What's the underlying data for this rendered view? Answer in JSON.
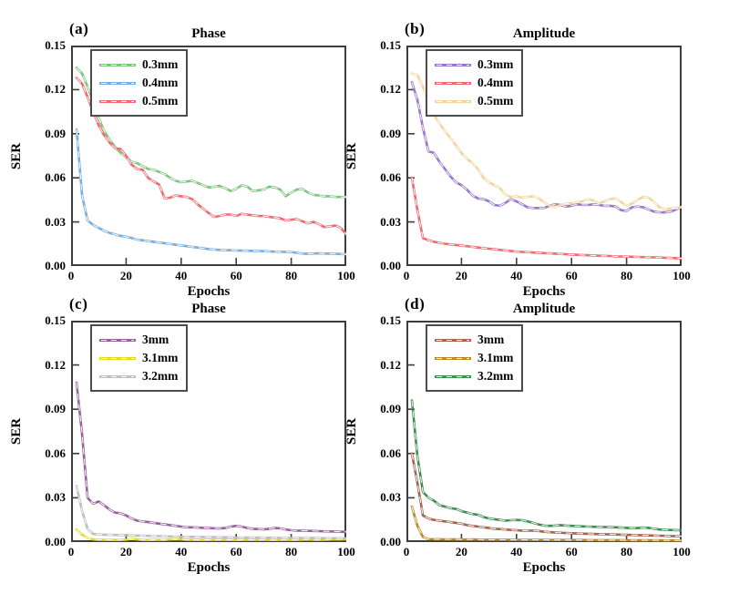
{
  "figure": {
    "background": "#ffffff",
    "axis_color": "#3d3d3d",
    "text_color": "#000000",
    "line_overlay_color": "#ffffff"
  },
  "chart_data": [
    {
      "type": "line",
      "tag": "(a)",
      "title": "Phase",
      "xlabel": "Epochs",
      "ylabel": "SER",
      "xlim": [
        0,
        100
      ],
      "ylim": [
        0,
        0.15
      ],
      "xticks": [
        0,
        20,
        40,
        60,
        80,
        100
      ],
      "ytick_labels": [
        "0.00",
        "0.03",
        "0.06",
        "0.09",
        "0.12",
        "0.15"
      ],
      "legend_position": "top-left",
      "grid": false,
      "x": [
        2,
        4,
        6,
        8,
        10,
        12,
        14,
        16,
        18,
        20,
        22,
        24,
        26,
        28,
        30,
        32,
        34,
        36,
        38,
        40,
        42,
        44,
        46,
        48,
        50,
        52,
        54,
        56,
        58,
        60,
        62,
        64,
        66,
        68,
        70,
        72,
        74,
        76,
        78,
        80,
        82,
        84,
        86,
        88,
        90,
        92,
        94,
        96,
        98,
        100
      ],
      "series": [
        {
          "name": "0.3mm",
          "color": "#7fc47f",
          "values": [
            0.135,
            0.131,
            0.122,
            0.112,
            0.101,
            0.092,
            0.086,
            0.081,
            0.077,
            0.074,
            0.071,
            0.07,
            0.068,
            0.066,
            0.0655,
            0.064,
            0.0625,
            0.06,
            0.058,
            0.057,
            0.0575,
            0.058,
            0.0565,
            0.055,
            0.0535,
            0.054,
            0.0545,
            0.053,
            0.051,
            0.0525,
            0.055,
            0.054,
            0.051,
            0.0515,
            0.052,
            0.054,
            0.0535,
            0.052,
            0.0475,
            0.05,
            0.052,
            0.0525,
            0.05,
            0.0485,
            0.048,
            0.0475,
            0.0475,
            0.047,
            0.047,
            0.047
          ]
        },
        {
          "name": "0.4mm",
          "color": "#79aede",
          "values": [
            0.093,
            0.048,
            0.031,
            0.028,
            0.026,
            0.024,
            0.0225,
            0.0215,
            0.0205,
            0.02,
            0.019,
            0.018,
            0.0175,
            0.017,
            0.0165,
            0.016,
            0.0155,
            0.015,
            0.0145,
            0.014,
            0.0135,
            0.013,
            0.0125,
            0.012,
            0.0115,
            0.0112,
            0.011,
            0.0108,
            0.0107,
            0.0106,
            0.0105,
            0.0104,
            0.0103,
            0.0102,
            0.0101,
            0.01,
            0.0098,
            0.0097,
            0.0096,
            0.0095,
            0.009,
            0.0085,
            0.0083,
            0.0085,
            0.0086,
            0.0085,
            0.0084,
            0.0083,
            0.0082,
            0.008
          ]
        },
        {
          "name": "0.5mm",
          "color": "#ee6a6f",
          "values": [
            0.128,
            0.124,
            0.115,
            0.105,
            0.096,
            0.089,
            0.084,
            0.08,
            0.0795,
            0.075,
            0.069,
            0.066,
            0.0655,
            0.06,
            0.0575,
            0.0555,
            0.046,
            0.0465,
            0.048,
            0.0475,
            0.047,
            0.0455,
            0.042,
            0.039,
            0.036,
            0.0335,
            0.034,
            0.035,
            0.035,
            0.034,
            0.0355,
            0.035,
            0.0345,
            0.034,
            0.034,
            0.0335,
            0.033,
            0.0325,
            0.031,
            0.0315,
            0.032,
            0.0305,
            0.029,
            0.03,
            0.0285,
            0.0265,
            0.027,
            0.0275,
            0.026,
            0.0215
          ]
        }
      ]
    },
    {
      "type": "line",
      "tag": "(b)",
      "title": "Amplitude",
      "xlabel": "Epochs",
      "ylabel": "SER",
      "xlim": [
        0,
        100
      ],
      "ylim": [
        0,
        0.15
      ],
      "xticks": [
        0,
        20,
        40,
        60,
        80,
        100
      ],
      "ytick_labels": [
        "0.00",
        "0.03",
        "0.06",
        "0.09",
        "0.12",
        "0.15"
      ],
      "legend_position": "top-left",
      "grid": false,
      "x": [
        2,
        4,
        6,
        8,
        10,
        12,
        14,
        16,
        18,
        20,
        22,
        24,
        26,
        28,
        30,
        32,
        34,
        36,
        38,
        40,
        42,
        44,
        46,
        48,
        50,
        52,
        54,
        56,
        58,
        60,
        62,
        64,
        66,
        68,
        70,
        72,
        74,
        76,
        78,
        80,
        82,
        84,
        86,
        88,
        90,
        92,
        94,
        96,
        98,
        100
      ],
      "series": [
        {
          "name": "0.3mm",
          "color": "#9678cf",
          "values": [
            0.125,
            0.113,
            0.094,
            0.078,
            0.077,
            0.071,
            0.066,
            0.061,
            0.057,
            0.055,
            0.052,
            0.048,
            0.046,
            0.0455,
            0.044,
            0.0415,
            0.041,
            0.043,
            0.0455,
            0.044,
            0.042,
            0.04,
            0.0395,
            0.0395,
            0.0395,
            0.041,
            0.042,
            0.0415,
            0.0405,
            0.041,
            0.042,
            0.0415,
            0.0415,
            0.042,
            0.0415,
            0.041,
            0.041,
            0.0405,
            0.038,
            0.0375,
            0.04,
            0.0405,
            0.04,
            0.0385,
            0.037,
            0.0365,
            0.0365,
            0.037,
            0.0385,
            0.0405
          ]
        },
        {
          "name": "0.4mm",
          "color": "#ee6a6f",
          "values": [
            0.06,
            0.038,
            0.019,
            0.0175,
            0.0165,
            0.0158,
            0.0152,
            0.0147,
            0.0143,
            0.0139,
            0.0135,
            0.013,
            0.0126,
            0.0122,
            0.0118,
            0.0114,
            0.011,
            0.0106,
            0.0102,
            0.0098,
            0.0096,
            0.0094,
            0.0092,
            0.009,
            0.0088,
            0.0086,
            0.0084,
            0.0082,
            0.008,
            0.0078,
            0.0076,
            0.0075,
            0.0073,
            0.0072,
            0.007,
            0.0069,
            0.0068,
            0.0066,
            0.0065,
            0.0064,
            0.0063,
            0.0062,
            0.0061,
            0.006,
            0.0059,
            0.0058,
            0.0056,
            0.0055,
            0.0053,
            0.0052
          ]
        },
        {
          "name": "0.5mm",
          "color": "#f2d49c",
          "values": [
            0.131,
            0.13,
            0.122,
            0.112,
            0.103,
            0.097,
            0.092,
            0.087,
            0.082,
            0.077,
            0.073,
            0.07,
            0.066,
            0.06,
            0.057,
            0.055,
            0.053,
            0.0485,
            0.047,
            0.0475,
            0.0465,
            0.047,
            0.0475,
            0.046,
            0.0435,
            0.041,
            0.04,
            0.0415,
            0.0425,
            0.0425,
            0.0435,
            0.044,
            0.0455,
            0.0445,
            0.0425,
            0.044,
            0.0455,
            0.046,
            0.0435,
            0.041,
            0.0425,
            0.045,
            0.047,
            0.0465,
            0.0435,
            0.04,
            0.0385,
            0.039,
            0.0395,
            0.04
          ]
        }
      ]
    },
    {
      "type": "line",
      "tag": "(c)",
      "title": "Phase",
      "xlabel": "Epochs",
      "ylabel": "SER",
      "xlim": [
        0,
        100
      ],
      "ylim": [
        0,
        0.15
      ],
      "xticks": [
        0,
        20,
        40,
        60,
        80,
        100
      ],
      "ytick_labels": [
        "0.00",
        "0.03",
        "0.06",
        "0.09",
        "0.12",
        "0.15"
      ],
      "legend_position": "top-left",
      "grid": false,
      "x": [
        2,
        4,
        6,
        8,
        10,
        12,
        14,
        16,
        18,
        20,
        22,
        24,
        26,
        28,
        30,
        32,
        34,
        36,
        38,
        40,
        42,
        44,
        46,
        48,
        50,
        52,
        54,
        56,
        58,
        60,
        62,
        64,
        66,
        68,
        70,
        72,
        74,
        76,
        78,
        80,
        82,
        84,
        86,
        88,
        90,
        92,
        94,
        96,
        98,
        100
      ],
      "series": [
        {
          "name": "3mm",
          "color": "#99619c",
          "values": [
            0.108,
            0.073,
            0.03,
            0.026,
            0.0275,
            0.025,
            0.022,
            0.02,
            0.0195,
            0.018,
            0.016,
            0.0145,
            0.014,
            0.0135,
            0.013,
            0.0125,
            0.012,
            0.0115,
            0.011,
            0.0105,
            0.01,
            0.01,
            0.0098,
            0.0096,
            0.0095,
            0.0093,
            0.0092,
            0.0095,
            0.0105,
            0.011,
            0.0105,
            0.0095,
            0.009,
            0.0088,
            0.0086,
            0.009,
            0.0095,
            0.0093,
            0.0085,
            0.008,
            0.0078,
            0.0077,
            0.0076,
            0.0075,
            0.0074,
            0.0073,
            0.0072,
            0.0071,
            0.007,
            0.007
          ]
        },
        {
          "name": "3.1mm",
          "color": "#e2dc1e",
          "values": [
            0.0085,
            0.005,
            0.0028,
            0.0018,
            0.0016,
            0.0015,
            0.0015,
            0.0014,
            0.0015,
            0.0016,
            0.0022,
            0.0018,
            0.0015,
            0.0014,
            0.0015,
            0.0016,
            0.0015,
            0.0018,
            0.002,
            0.0018,
            0.0016,
            0.0015,
            0.0015,
            0.0014,
            0.0015,
            0.0015,
            0.0016,
            0.0015,
            0.0015,
            0.0014,
            0.0015,
            0.0016,
            0.0015,
            0.0015,
            0.0016,
            0.0015,
            0.0014,
            0.0015,
            0.0016,
            0.0015,
            0.0015,
            0.0016,
            0.0017,
            0.0016,
            0.0015,
            0.0016,
            0.0017,
            0.0018,
            0.0018,
            0.002
          ]
        },
        {
          "name": "3.2mm",
          "color": "#bdbdbd",
          "values": [
            0.038,
            0.021,
            0.009,
            0.0055,
            0.0052,
            0.005,
            0.0049,
            0.0048,
            0.0047,
            0.0046,
            0.0045,
            0.0044,
            0.0043,
            0.0042,
            0.0041,
            0.004,
            0.0039,
            0.0038,
            0.0037,
            0.0036,
            0.0036,
            0.0035,
            0.0035,
            0.0034,
            0.0034,
            0.0033,
            0.0033,
            0.0032,
            0.0032,
            0.0031,
            0.0031,
            0.003,
            0.003,
            0.003,
            0.0029,
            0.0029,
            0.0029,
            0.0028,
            0.0028,
            0.0028,
            0.0028,
            0.0027,
            0.0027,
            0.0027,
            0.0027,
            0.0026,
            0.0026,
            0.0026,
            0.0026,
            0.0025
          ]
        }
      ]
    },
    {
      "type": "line",
      "tag": "(d)",
      "title": "Amplitude",
      "xlabel": "Epochs",
      "ylabel": "SER",
      "xlim": [
        0,
        100
      ],
      "ylim": [
        0,
        0.15
      ],
      "xticks": [
        0,
        20,
        40,
        60,
        80,
        100
      ],
      "ytick_labels": [
        "0.00",
        "0.03",
        "0.06",
        "0.09",
        "0.12",
        "0.15"
      ],
      "legend_position": "top-left",
      "grid": false,
      "x": [
        2,
        4,
        6,
        8,
        10,
        12,
        14,
        16,
        18,
        20,
        22,
        24,
        26,
        28,
        30,
        32,
        34,
        36,
        38,
        40,
        42,
        44,
        46,
        48,
        50,
        52,
        54,
        56,
        58,
        60,
        62,
        64,
        66,
        68,
        70,
        72,
        74,
        76,
        78,
        80,
        82,
        84,
        86,
        88,
        90,
        92,
        94,
        96,
        98,
        100
      ],
      "series": [
        {
          "name": "3mm",
          "color": "#a5644e",
          "values": [
            0.06,
            0.04,
            0.018,
            0.016,
            0.015,
            0.0145,
            0.014,
            0.0135,
            0.013,
            0.0125,
            0.0115,
            0.011,
            0.0105,
            0.01,
            0.0095,
            0.009,
            0.0088,
            0.0085,
            0.0082,
            0.008,
            0.0078,
            0.0077,
            0.0078,
            0.0075,
            0.007,
            0.0067,
            0.0065,
            0.0063,
            0.0062,
            0.006,
            0.0058,
            0.0057,
            0.0056,
            0.0055,
            0.0054,
            0.0053,
            0.0052,
            0.0051,
            0.005,
            0.0049,
            0.0048,
            0.0047,
            0.0046,
            0.0045,
            0.0044,
            0.0043,
            0.0042,
            0.0041,
            0.004,
            0.004
          ]
        },
        {
          "name": "3.1mm",
          "color": "#bb8b22",
          "values": [
            0.024,
            0.011,
            0.0035,
            0.002,
            0.0019,
            0.0019,
            0.0018,
            0.0018,
            0.0018,
            0.0017,
            0.0017,
            0.0017,
            0.0017,
            0.0016,
            0.0016,
            0.0016,
            0.0016,
            0.0016,
            0.0015,
            0.0015,
            0.0015,
            0.0015,
            0.0015,
            0.0015,
            0.0015,
            0.0014,
            0.0014,
            0.0014,
            0.0014,
            0.0014,
            0.0014,
            0.0014,
            0.0013,
            0.0013,
            0.0013,
            0.0013,
            0.0013,
            0.0013,
            0.0013,
            0.0012,
            0.0012,
            0.0012,
            0.0012,
            0.0012,
            0.0012,
            0.0012,
            0.0011,
            0.0011,
            0.0011,
            0.0011
          ]
        },
        {
          "name": "3.2mm",
          "color": "#3f8e4f",
          "values": [
            0.096,
            0.058,
            0.034,
            0.03,
            0.028,
            0.025,
            0.024,
            0.023,
            0.0225,
            0.021,
            0.02,
            0.019,
            0.0185,
            0.017,
            0.016,
            0.0155,
            0.015,
            0.0145,
            0.0148,
            0.015,
            0.0148,
            0.014,
            0.013,
            0.012,
            0.0112,
            0.011,
            0.0112,
            0.0115,
            0.0112,
            0.011,
            0.0108,
            0.0106,
            0.0105,
            0.0104,
            0.0103,
            0.0102,
            0.0101,
            0.01,
            0.0098,
            0.0096,
            0.0094,
            0.0095,
            0.0098,
            0.0096,
            0.009,
            0.0085,
            0.0083,
            0.0082,
            0.0081,
            0.008
          ]
        }
      ]
    }
  ]
}
